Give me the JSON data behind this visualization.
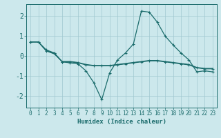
{
  "xlabel": "Humidex (Indice chaleur)",
  "bg_color": "#cce8ec",
  "grid_color": "#a0c8d0",
  "line_color": "#1a6b6b",
  "xlim": [
    -0.5,
    23.5
  ],
  "ylim": [
    -2.6,
    2.6
  ],
  "yticks": [
    -2,
    -1,
    0,
    1,
    2
  ],
  "xticks": [
    0,
    1,
    2,
    3,
    4,
    5,
    6,
    7,
    8,
    9,
    10,
    11,
    12,
    13,
    14,
    15,
    16,
    17,
    18,
    19,
    20,
    21,
    22,
    23
  ],
  "series": [
    {
      "x": [
        0,
        1,
        2,
        3,
        4,
        5,
        6,
        7,
        8,
        9,
        10,
        11,
        12,
        13,
        14,
        15,
        16,
        17,
        18,
        19,
        20,
        21,
        22,
        23
      ],
      "y": [
        0.7,
        0.7,
        0.3,
        0.15,
        -0.3,
        -0.35,
        -0.4,
        -0.75,
        -1.35,
        -2.2,
        -0.85,
        -0.2,
        0.15,
        0.6,
        2.25,
        2.2,
        1.7,
        1.0,
        0.55,
        0.15,
        -0.2,
        -0.8,
        -0.75,
        -0.8
      ],
      "marker": true
    },
    {
      "x": [
        0,
        1,
        2,
        3,
        4,
        5,
        6,
        7,
        8,
        9,
        10,
        11,
        12,
        13,
        14,
        15,
        16,
        17,
        18,
        19,
        20,
        21,
        22,
        23
      ],
      "y": [
        0.7,
        0.7,
        0.25,
        0.15,
        -0.3,
        -0.3,
        -0.35,
        -0.45,
        -0.5,
        -0.5,
        -0.5,
        -0.45,
        -0.4,
        -0.35,
        -0.3,
        -0.25,
        -0.25,
        -0.3,
        -0.35,
        -0.4,
        -0.45,
        -0.6,
        -0.65,
        -0.65
      ],
      "marker": true
    },
    {
      "x": [
        0,
        1,
        2,
        3,
        4,
        5,
        6,
        7,
        8,
        9,
        10,
        11,
        12,
        13,
        14,
        15,
        16,
        17,
        18,
        19,
        20,
        21,
        22,
        23
      ],
      "y": [
        0.7,
        0.7,
        0.25,
        0.1,
        -0.28,
        -0.28,
        -0.33,
        -0.43,
        -0.48,
        -0.48,
        -0.48,
        -0.43,
        -0.38,
        -0.33,
        -0.28,
        -0.23,
        -0.23,
        -0.28,
        -0.33,
        -0.38,
        -0.43,
        -0.58,
        -0.63,
        -0.63
      ],
      "marker": false
    }
  ]
}
